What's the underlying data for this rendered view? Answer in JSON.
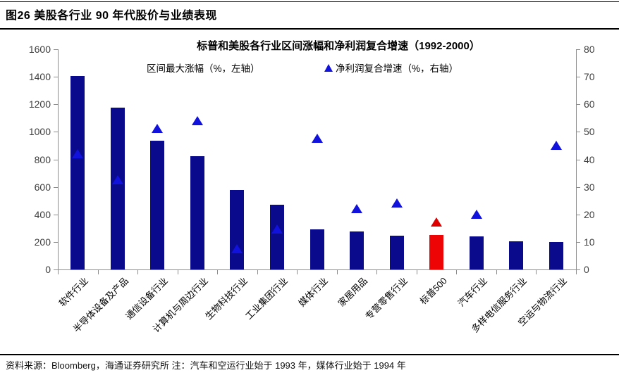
{
  "page": {
    "title": "图26 美股各行业 90 年代股价与业绩表现",
    "source_note": "资料来源：Bloomberg，海通证券研究所 注：汽车和空运行业始于 1993 年，媒体行业始于 1994 年"
  },
  "chart_data": {
    "type": "bar",
    "title": "标普和美股各行业区间涨幅和净利润复合增速（1992-2000）",
    "categories": [
      "软件行业",
      "半导体设备及产品",
      "通信设备行业",
      "计算机与周边行业",
      "生物科技行业",
      "工业集团行业",
      "媒体行业",
      "家居用品",
      "专营零售行业",
      "标普500",
      "汽车行业",
      "多样电信服务行业",
      "空运与物流行业"
    ],
    "series": [
      {
        "name": "区间最大涨幅（%，左轴）",
        "type": "bar",
        "axis": "left",
        "values": [
          1405,
          1175,
          935,
          825,
          580,
          470,
          290,
          275,
          245,
          250,
          240,
          205,
          200
        ]
      },
      {
        "name": "净利润复合增速（%，右轴）",
        "type": "scatter",
        "marker": "triangle",
        "axis": "right",
        "values": [
          42,
          32.5,
          51,
          54,
          7.5,
          14.5,
          47.5,
          22,
          24,
          17,
          20,
          null,
          45
        ]
      }
    ],
    "highlight_index": 9,
    "highlight_category": "标普500",
    "left_axis": {
      "min": 0,
      "max": 1600,
      "ticks": [
        0,
        200,
        400,
        600,
        800,
        1000,
        1200,
        1400,
        1600
      ]
    },
    "right_axis": {
      "min": 0,
      "max": 80,
      "ticks": [
        0,
        10,
        20,
        30,
        40,
        50,
        60,
        70,
        80
      ]
    },
    "legend_position": "top",
    "grid": false,
    "colors": {
      "bar": "#0a0a8c",
      "marker": "#1212dd",
      "highlight_bar": "#ee0404",
      "highlight_marker": "#dd0000",
      "axis_line": "#8c8c8c",
      "tick_label": "#3d3d3d"
    }
  }
}
